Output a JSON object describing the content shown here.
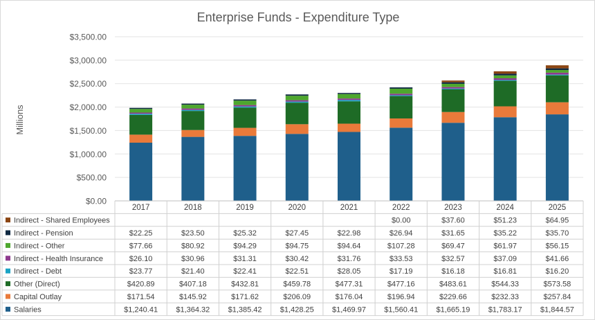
{
  "chart_data": {
    "type": "bar",
    "stacked": true,
    "title": "Enterprise Funds - Expenditure Type",
    "ylabel": "Millions",
    "xlabel": "",
    "ylim": [
      0,
      3500
    ],
    "ytick_values": [
      0,
      500,
      1000,
      1500,
      2000,
      2500,
      3000,
      3500
    ],
    "ytick_labels": [
      "$0.00",
      "$500.00",
      "$1,000.00",
      "$1,500.00",
      "$2,000.00",
      "$2,500.00",
      "$3,000.00",
      "$3,500.00"
    ],
    "grid": true,
    "legend": "data-table-left",
    "categories": [
      "2017",
      "2018",
      "2019",
      "2020",
      "2021",
      "2022",
      "2023",
      "2024",
      "2025"
    ],
    "series": [
      {
        "name": "Salaries",
        "color": "#1f5f8b",
        "values": [
          1240.41,
          1364.32,
          1385.42,
          1428.25,
          1469.97,
          1560.41,
          1665.19,
          1783.17,
          1844.57
        ],
        "labels": [
          "$1,240.41",
          "$1,364.32",
          "$1,385.42",
          "$1,428.25",
          "$1,469.97",
          "$1,560.41",
          "$1,665.19",
          "$1,783.17",
          "$1,844.57"
        ]
      },
      {
        "name": "Capital Outlay",
        "color": "#e97a3a",
        "values": [
          171.54,
          145.92,
          171.62,
          206.09,
          176.04,
          196.94,
          229.66,
          232.33,
          257.84
        ],
        "labels": [
          "$171.54",
          "$145.92",
          "$171.62",
          "$206.09",
          "$176.04",
          "$196.94",
          "$229.66",
          "$232.33",
          "$257.84"
        ]
      },
      {
        "name": "Other (Direct)",
        "color": "#1e6b26",
        "values": [
          420.89,
          407.18,
          432.81,
          459.78,
          477.31,
          477.16,
          483.61,
          544.33,
          573.58
        ],
        "labels": [
          "$420.89",
          "$407.18",
          "$432.81",
          "$459.78",
          "$477.31",
          "$477.16",
          "$483.61",
          "$544.33",
          "$573.58"
        ]
      },
      {
        "name": "Indirect - Debt",
        "color": "#1aa3c4",
        "values": [
          23.77,
          21.4,
          22.41,
          22.51,
          28.05,
          17.19,
          16.18,
          16.81,
          16.2
        ],
        "labels": [
          "$23.77",
          "$21.40",
          "$22.41",
          "$22.51",
          "$28.05",
          "$17.19",
          "$16.18",
          "$16.81",
          "$16.20"
        ]
      },
      {
        "name": "Indirect - Health Insurance",
        "color": "#8e3a8e",
        "values": [
          26.1,
          30.96,
          31.31,
          30.42,
          31.76,
          33.53,
          32.57,
          37.09,
          41.66
        ],
        "labels": [
          "$26.10",
          "$30.96",
          "$31.31",
          "$30.42",
          "$31.76",
          "$33.53",
          "$32.57",
          "$37.09",
          "$41.66"
        ]
      },
      {
        "name": "Indirect - Other",
        "color": "#4ea72e",
        "values": [
          77.66,
          80.92,
          94.29,
          94.75,
          94.64,
          107.28,
          69.47,
          61.97,
          56.15
        ],
        "labels": [
          "$77.66",
          "$80.92",
          "$94.29",
          "$94.75",
          "$94.64",
          "$107.28",
          "$69.47",
          "$61.97",
          "$56.15"
        ]
      },
      {
        "name": "Indirect - Pension",
        "color": "#0e2841",
        "values": [
          22.25,
          23.5,
          25.32,
          27.45,
          22.98,
          26.94,
          31.65,
          35.22,
          35.7
        ],
        "labels": [
          "$22.25",
          "$23.50",
          "$25.32",
          "$27.45",
          "$22.98",
          "$26.94",
          "$31.65",
          "$35.22",
          "$35.70"
        ]
      },
      {
        "name": "Indirect - Shared Employees",
        "color": "#8b4513",
        "values": [
          null,
          null,
          null,
          null,
          null,
          0.0,
          37.6,
          51.23,
          64.95
        ],
        "labels": [
          "",
          "",
          "",
          "",
          "",
          "$0.00",
          "$37.60",
          "$51.23",
          "$64.95"
        ]
      }
    ]
  }
}
